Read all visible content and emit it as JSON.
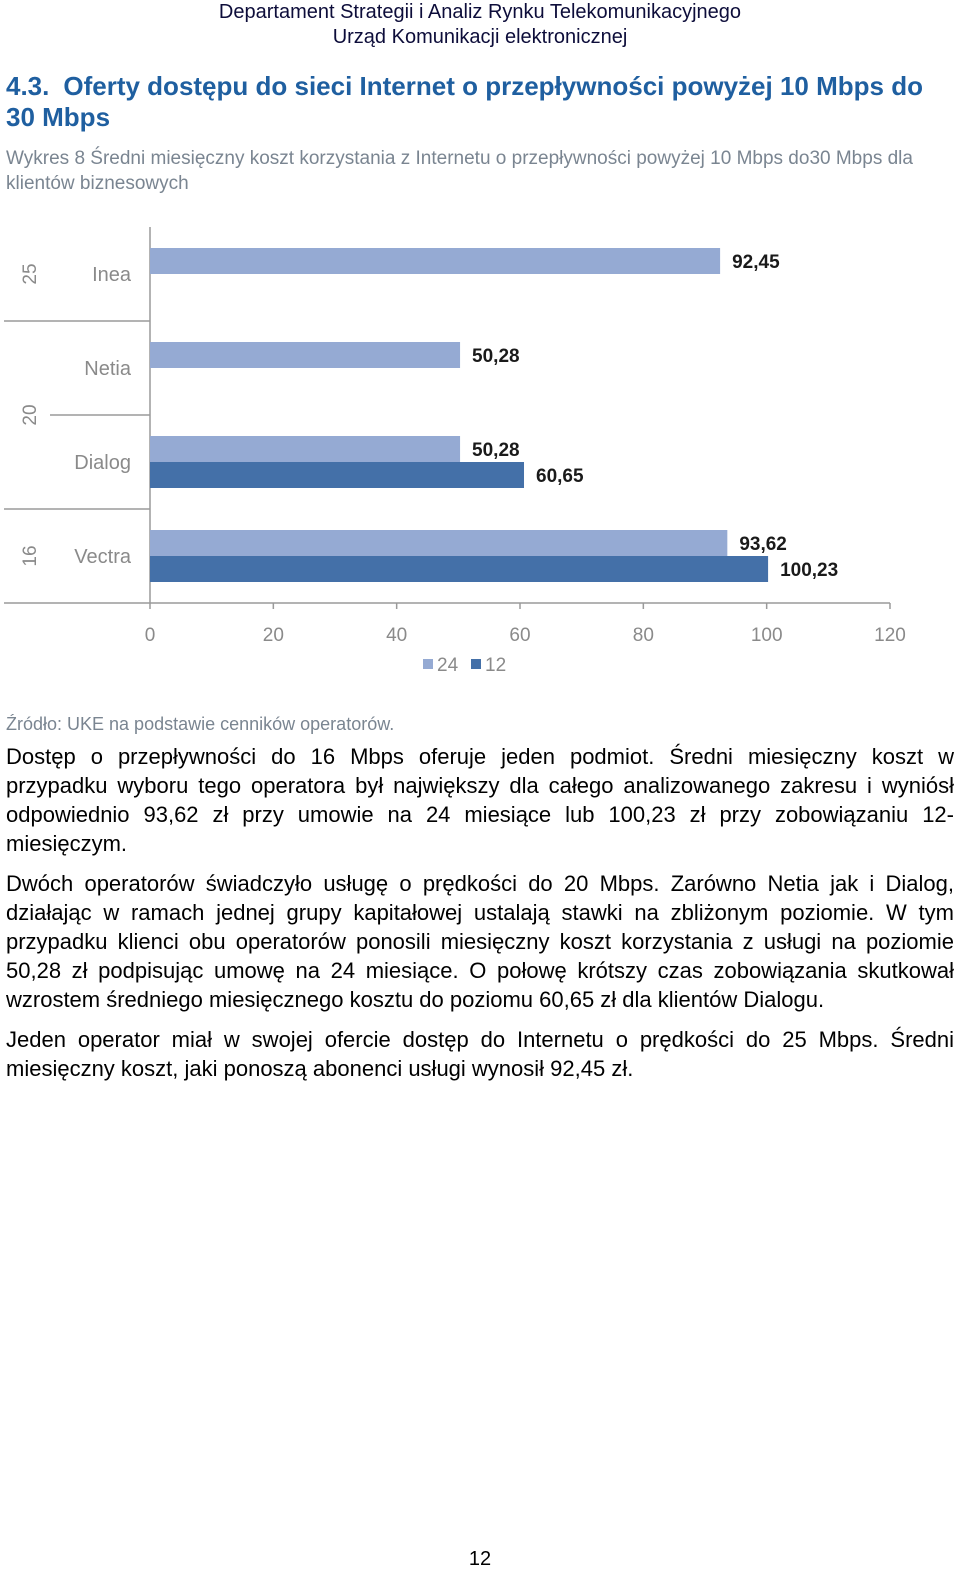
{
  "header": {
    "line1": "Departament Strategii i Analiz Rynku Telekomunikacyjnego",
    "line2": "Urząd Komunikacji elektronicznej"
  },
  "section": {
    "number": "4.3.",
    "title": "Oferty dostępu do sieci Internet o przepływności powyżej 10 Mbps do 30 Mbps"
  },
  "caption": "Wykres 8 Średni miesięczny koszt korzystania z Internetu o przepływności powyżej 10 Mbps do30 Mbps dla klientów biznesowych",
  "colors": {
    "series24": "#95aad3",
    "series12": "#4470a8",
    "axis": "#9a9a9a",
    "tickText": "#8a8a8a"
  },
  "chart_data": {
    "type": "bar",
    "orientation": "horizontal",
    "groups": [
      {
        "speed": "25",
        "operators": [
          "Inea"
        ]
      },
      {
        "speed": "20",
        "operators": [
          "Netia",
          "Dialog"
        ]
      },
      {
        "speed": "16",
        "operators": [
          "Vectra"
        ]
      }
    ],
    "categories": [
      "Inea",
      "Netia",
      "Dialog",
      "Vectra"
    ],
    "series": [
      {
        "name": "24",
        "values": [
          92.45,
          50.28,
          50.28,
          93.62
        ],
        "labels": [
          "92,45",
          "50,28",
          "50,28",
          "93,62"
        ]
      },
      {
        "name": "12",
        "values": [
          null,
          null,
          60.65,
          100.23
        ],
        "labels": [
          "",
          "",
          "60,65",
          "100,23"
        ]
      }
    ],
    "xlim": [
      0,
      120
    ],
    "xticks": [
      0,
      20,
      40,
      60,
      80,
      100,
      120
    ],
    "legend": "bottom-center",
    "grid": false
  },
  "source": "Źródło: UKE na podstawie cenników operatorów.",
  "paragraphs": [
    "Dostęp o przepływności do 16 Mbps oferuje jeden podmiot. Średni miesięczny koszt w przypadku wyboru tego operatora był największy dla całego analizowanego zakresu i wyniósł odpowiednio 93,62 zł przy umowie na 24 miesiące lub 100,23 zł przy zobowiązaniu 12-miesięczym.",
    "Dwóch operatorów świadczyło usługę o prędkości do 20 Mbps. Zarówno Netia jak i Dialog, działając w ramach jednej grupy kapitałowej ustalają stawki na zbliżonym poziomie. W tym przypadku klienci obu operatorów ponosili miesięczny koszt korzystania z usługi na poziomie 50,28 zł podpisując umowę na 24 miesiące. O połowę krótszy czas zobowiązania skutkował wzrostem średniego miesięcznego kosztu do poziomu 60,65 zł dla klientów Dialogu.",
    "Jeden operator miał w swojej ofercie dostęp do Internetu o prędkości do 25 Mbps. Średni miesięczny koszt, jaki ponoszą abonenci usługi wynosił 92,45 zł."
  ],
  "page_number": "12"
}
